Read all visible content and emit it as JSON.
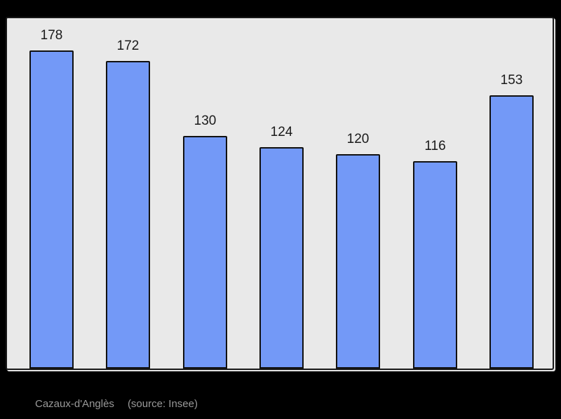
{
  "canvas": {
    "background": "#000000"
  },
  "chart_data": {
    "type": "bar",
    "values": [
      178,
      172,
      130,
      124,
      120,
      116,
      153
    ],
    "bar_labels": [
      "178",
      "172",
      "130",
      "124",
      "120",
      "116",
      "153"
    ],
    "title": "",
    "xlabel": "",
    "ylabel": "",
    "ylim": [
      0,
      196
    ],
    "grid": false,
    "legend": false,
    "axes_visible": false,
    "bar_color": "#7399f7",
    "bar_border_color": "#111111",
    "plot_background": "#e9e9e9",
    "value_label_color": "#1a1a1a"
  },
  "caption": {
    "name": "Cazaux-d'Anglès",
    "source": "(source: Insee)",
    "color": "#999999"
  }
}
